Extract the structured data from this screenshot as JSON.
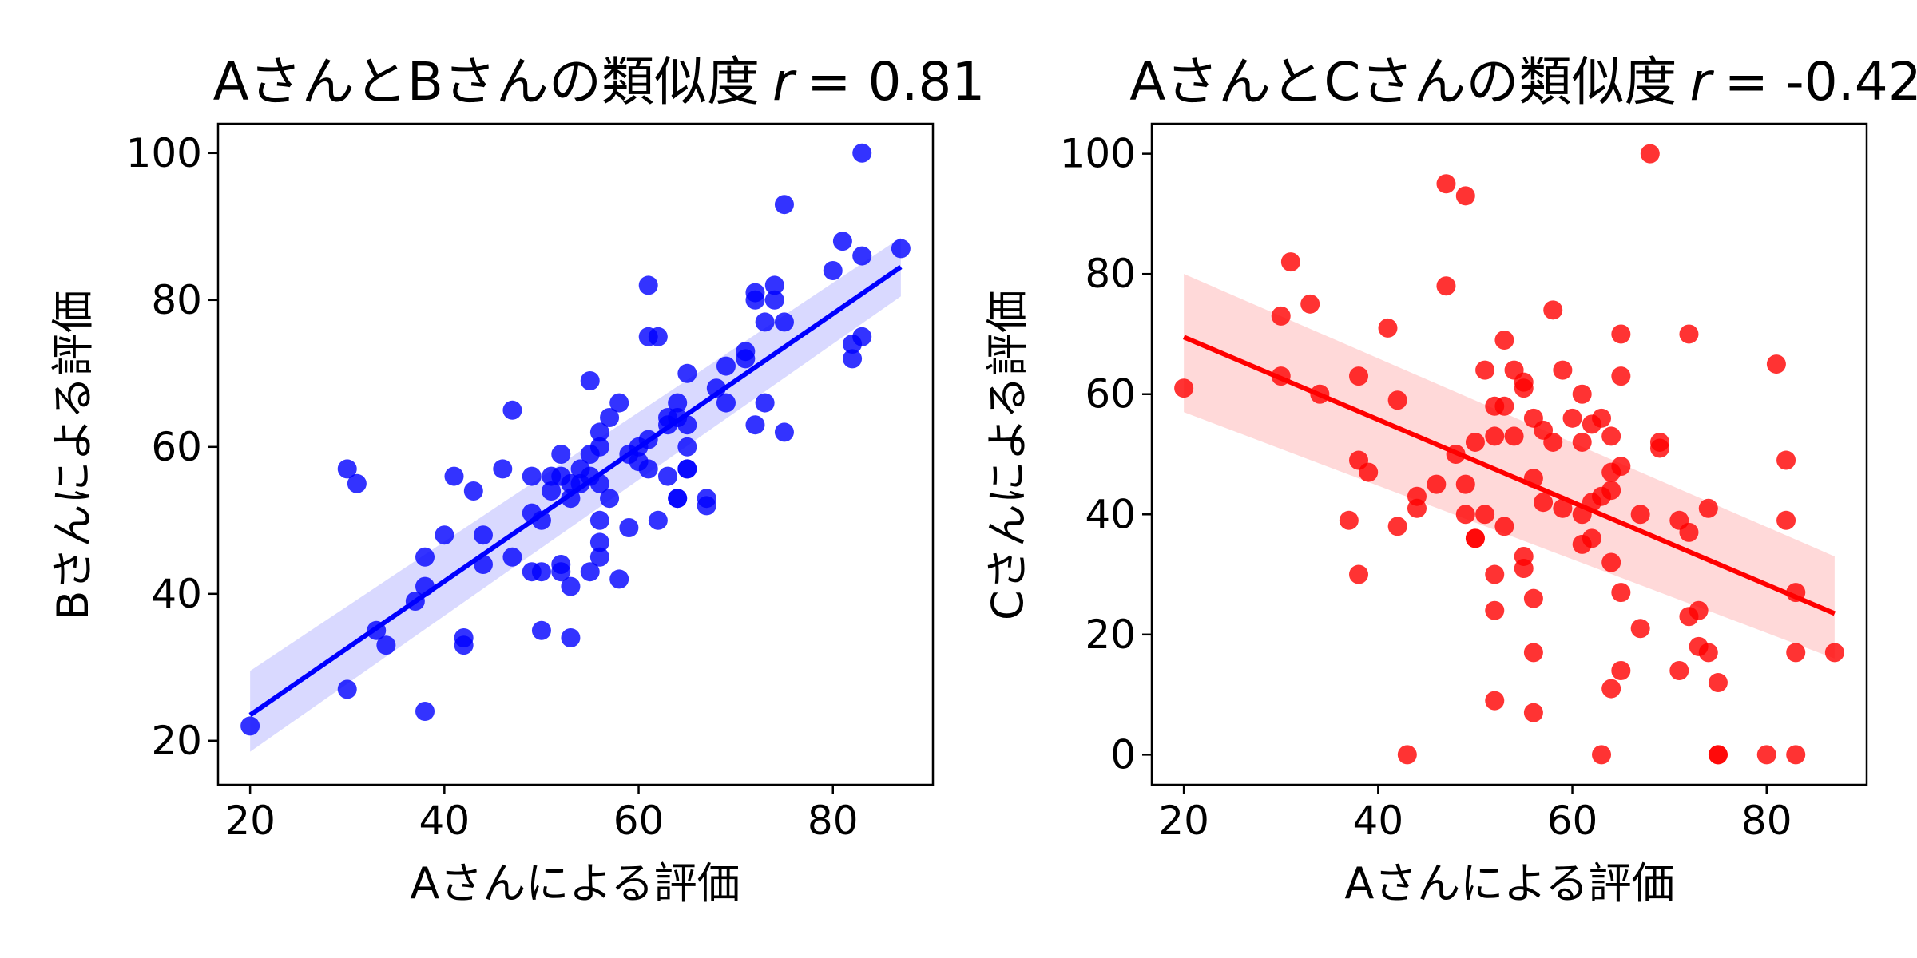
{
  "chart_data": [
    {
      "type": "scatter",
      "title": "AさんとBさんの類似度",
      "title_stat_symbol": "r",
      "title_stat_value": "= 0.81",
      "xlabel": "Aさんによる評価",
      "ylabel": "Bさんによる評価",
      "xlim": [
        16.7,
        90.3
      ],
      "ylim": [
        14,
        104
      ],
      "xticks": [
        "20",
        "40",
        "60",
        "80"
      ],
      "yticks": [
        "20",
        "40",
        "60",
        "80",
        "100"
      ],
      "color": "#0000ff",
      "regression": {
        "x": [
          20,
          87
        ],
        "y": [
          23.5,
          84.5
        ],
        "ci_lower": [
          18.5,
          80.5
        ],
        "ci_upper": [
          29.5,
          88.5
        ]
      },
      "points": [
        [
          20,
          22
        ],
        [
          30,
          27
        ],
        [
          30,
          57
        ],
        [
          31,
          55
        ],
        [
          33,
          35
        ],
        [
          34,
          33
        ],
        [
          37,
          39
        ],
        [
          38,
          41
        ],
        [
          38,
          45
        ],
        [
          38,
          24
        ],
        [
          40,
          48
        ],
        [
          41,
          56
        ],
        [
          42,
          34
        ],
        [
          42,
          33
        ],
        [
          43,
          54
        ],
        [
          44,
          48
        ],
        [
          44,
          44
        ],
        [
          46,
          57
        ],
        [
          47,
          65
        ],
        [
          47,
          45
        ],
        [
          49,
          56
        ],
        [
          49,
          51
        ],
        [
          49,
          43
        ],
        [
          50,
          50
        ],
        [
          50,
          43
        ],
        [
          50,
          35
        ],
        [
          51,
          56
        ],
        [
          51,
          54
        ],
        [
          52,
          56
        ],
        [
          52,
          59
        ],
        [
          52,
          44
        ],
        [
          52,
          43
        ],
        [
          53,
          55
        ],
        [
          53,
          53
        ],
        [
          53,
          41
        ],
        [
          53,
          34
        ],
        [
          54,
          57
        ],
        [
          54,
          55
        ],
        [
          55,
          69
        ],
        [
          55,
          59
        ],
        [
          55,
          56
        ],
        [
          55,
          43
        ],
        [
          56,
          62
        ],
        [
          56,
          60
        ],
        [
          56,
          55
        ],
        [
          56,
          50
        ],
        [
          56,
          47
        ],
        [
          56,
          45
        ],
        [
          57,
          64
        ],
        [
          57,
          53
        ],
        [
          58,
          66
        ],
        [
          58,
          42
        ],
        [
          59,
          59
        ],
        [
          59,
          49
        ],
        [
          60,
          60
        ],
        [
          60,
          58
        ],
        [
          61,
          82
        ],
        [
          61,
          75
        ],
        [
          61,
          61
        ],
        [
          61,
          57
        ],
        [
          62,
          75
        ],
        [
          62,
          50
        ],
        [
          63,
          64
        ],
        [
          63,
          63
        ],
        [
          63,
          56
        ],
        [
          64,
          66
        ],
        [
          64,
          64
        ],
        [
          64,
          53
        ],
        [
          64,
          53
        ],
        [
          65,
          70
        ],
        [
          65,
          63
        ],
        [
          65,
          60
        ],
        [
          65,
          57
        ],
        [
          65,
          57
        ],
        [
          67,
          53
        ],
        [
          67,
          52
        ],
        [
          68,
          68
        ],
        [
          69,
          71
        ],
        [
          69,
          66
        ],
        [
          71,
          73
        ],
        [
          71,
          72
        ],
        [
          72,
          81
        ],
        [
          72,
          80
        ],
        [
          72,
          63
        ],
        [
          73,
          77
        ],
        [
          73,
          66
        ],
        [
          74,
          82
        ],
        [
          74,
          80
        ],
        [
          75,
          93
        ],
        [
          75,
          77
        ],
        [
          75,
          62
        ],
        [
          80,
          84
        ],
        [
          81,
          88
        ],
        [
          82,
          74
        ],
        [
          82,
          72
        ],
        [
          83,
          100
        ],
        [
          83,
          86
        ],
        [
          83,
          75
        ],
        [
          87,
          87
        ]
      ]
    },
    {
      "type": "scatter",
      "title": "AさんとCさんの類似度",
      "title_stat_symbol": "r",
      "title_stat_value": "= -0.42",
      "xlabel": "Aさんによる評価",
      "ylabel": "Cさんによる評価",
      "xlim": [
        16.7,
        90.3
      ],
      "ylim": [
        -5,
        105
      ],
      "xticks": [
        "20",
        "40",
        "60",
        "80"
      ],
      "yticks": [
        "0",
        "20",
        "40",
        "60",
        "80",
        "100"
      ],
      "color": "#ff0000",
      "regression": {
        "x": [
          20,
          87
        ],
        "y": [
          69.5,
          23.5
        ],
        "ci_lower": [
          57,
          16
        ],
        "ci_upper": [
          80,
          33
        ]
      },
      "points": [
        [
          20,
          61
        ],
        [
          30,
          63
        ],
        [
          30,
          73
        ],
        [
          31,
          82
        ],
        [
          33,
          75
        ],
        [
          34,
          60
        ],
        [
          37,
          39
        ],
        [
          38,
          63
        ],
        [
          38,
          49
        ],
        [
          38,
          30
        ],
        [
          39,
          47
        ],
        [
          41,
          71
        ],
        [
          42,
          59
        ],
        [
          42,
          38
        ],
        [
          43,
          0
        ],
        [
          44,
          43
        ],
        [
          44,
          41
        ],
        [
          46,
          45
        ],
        [
          47,
          95
        ],
        [
          47,
          78
        ],
        [
          48,
          50
        ],
        [
          49,
          93
        ],
        [
          49,
          45
        ],
        [
          49,
          40
        ],
        [
          50,
          52
        ],
        [
          50,
          36
        ],
        [
          50,
          36
        ],
        [
          51,
          64
        ],
        [
          51,
          40
        ],
        [
          52,
          58
        ],
        [
          52,
          53
        ],
        [
          52,
          30
        ],
        [
          52,
          24
        ],
        [
          52,
          9
        ],
        [
          53,
          69
        ],
        [
          53,
          58
        ],
        [
          53,
          38
        ],
        [
          54,
          64
        ],
        [
          54,
          53
        ],
        [
          55,
          62
        ],
        [
          55,
          61
        ],
        [
          55,
          33
        ],
        [
          55,
          31
        ],
        [
          56,
          56
        ],
        [
          56,
          46
        ],
        [
          56,
          26
        ],
        [
          56,
          17
        ],
        [
          56,
          7
        ],
        [
          57,
          54
        ],
        [
          57,
          42
        ],
        [
          58,
          74
        ],
        [
          58,
          52
        ],
        [
          59,
          64
        ],
        [
          59,
          41
        ],
        [
          60,
          56
        ],
        [
          61,
          60
        ],
        [
          61,
          52
        ],
        [
          61,
          40
        ],
        [
          61,
          35
        ],
        [
          62,
          55
        ],
        [
          62,
          42
        ],
        [
          62,
          36
        ],
        [
          63,
          56
        ],
        [
          63,
          43
        ],
        [
          63,
          0
        ],
        [
          64,
          53
        ],
        [
          64,
          47
        ],
        [
          64,
          44
        ],
        [
          64,
          32
        ],
        [
          64,
          11
        ],
        [
          65,
          70
        ],
        [
          65,
          63
        ],
        [
          65,
          48
        ],
        [
          65,
          27
        ],
        [
          65,
          14
        ],
        [
          67,
          40
        ],
        [
          67,
          21
        ],
        [
          68,
          100
        ],
        [
          69,
          52
        ],
        [
          69,
          51
        ],
        [
          71,
          39
        ],
        [
          71,
          14
        ],
        [
          72,
          70
        ],
        [
          72,
          37
        ],
        [
          72,
          23
        ],
        [
          73,
          24
        ],
        [
          73,
          18
        ],
        [
          74,
          41
        ],
        [
          74,
          17
        ],
        [
          75,
          12
        ],
        [
          75,
          0
        ],
        [
          75,
          0
        ],
        [
          80,
          0
        ],
        [
          81,
          65
        ],
        [
          82,
          49
        ],
        [
          82,
          39
        ],
        [
          83,
          27
        ],
        [
          83,
          17
        ],
        [
          83,
          0
        ],
        [
          87,
          17
        ]
      ]
    }
  ]
}
